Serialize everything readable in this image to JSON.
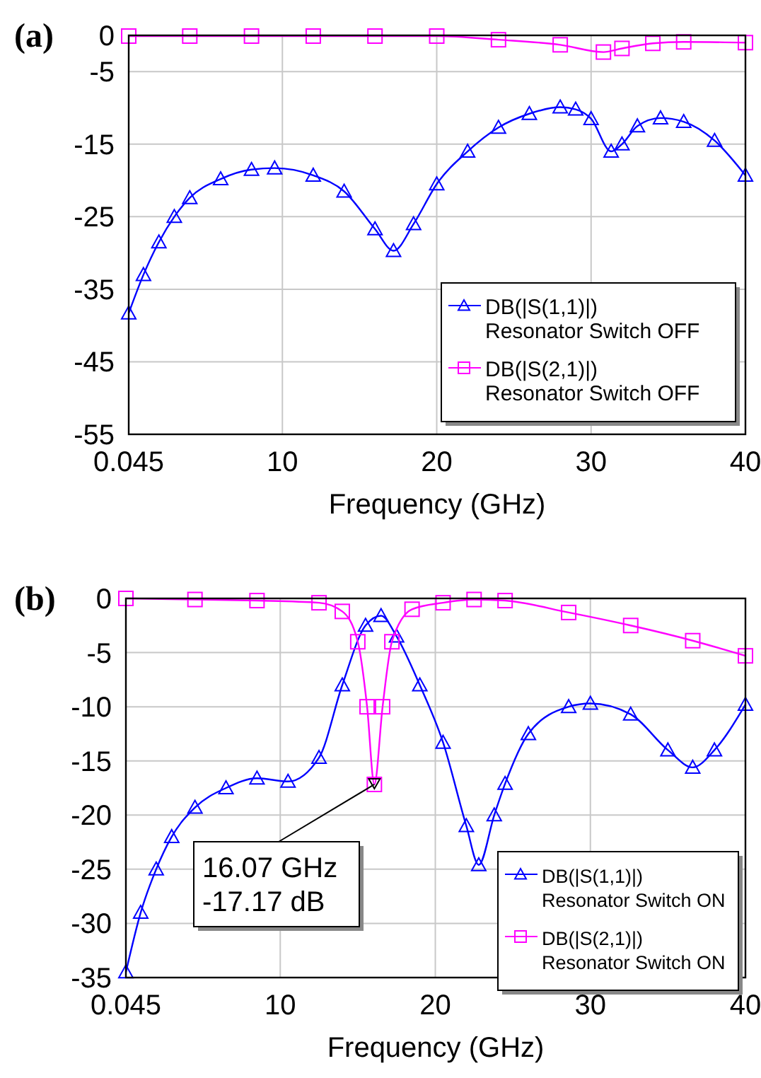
{
  "chart_data": [
    {
      "type": "line",
      "title": "(a)",
      "xlabel": "Frequency (GHz)",
      "xlim": [
        0.045,
        40
      ],
      "xticks": [
        0.045,
        10,
        20,
        30,
        40
      ],
      "ylim": [
        -55,
        0
      ],
      "yticks": [
        0,
        -5,
        -15,
        -25,
        -35,
        -45,
        -55
      ],
      "grid": true,
      "legend": "bottom right",
      "series": [
        {
          "name": "DB(|S(1,1)|)\nResonator Switch OFF",
          "color": "#0000ff",
          "marker": "triangle",
          "x": [
            0.045,
            1,
            2,
            3,
            4,
            6,
            8,
            9.5,
            12,
            14,
            16,
            17.2,
            18.5,
            20,
            22,
            24,
            26,
            28,
            29,
            30,
            31.3,
            32,
            33,
            34.5,
            36,
            38,
            40
          ],
          "values": [
            -38.3,
            -33,
            -28.5,
            -25,
            -22.4,
            -19.8,
            -18.5,
            -18.3,
            -19.3,
            -21.5,
            -26.7,
            -29.7,
            -26,
            -20.5,
            -16,
            -12.7,
            -10.8,
            -9.9,
            -10.2,
            -11.5,
            -16,
            -15,
            -12.5,
            -11.4,
            -11.9,
            -14.5,
            -19.3
          ]
        },
        {
          "name": "DB(|S(2,1)|)\nResonator Switch OFF",
          "color": "#ff00ff",
          "marker": "square",
          "x": [
            0.045,
            4,
            8,
            12,
            16,
            20,
            24,
            28,
            30.8,
            32,
            34,
            36,
            40
          ],
          "values": [
            -0.1,
            -0.1,
            -0.1,
            -0.1,
            -0.1,
            -0.1,
            -0.6,
            -1.3,
            -2.3,
            -1.8,
            -1.1,
            -0.9,
            -1.0
          ]
        }
      ]
    },
    {
      "type": "line",
      "title": "(b)",
      "xlabel": "Frequency (GHz)",
      "xlim": [
        0.045,
        40
      ],
      "xticks": [
        0.045,
        10,
        20,
        30,
        40
      ],
      "ylim": [
        -35,
        0
      ],
      "yticks": [
        0,
        -5,
        -10,
        -15,
        -20,
        -25,
        -30,
        -35
      ],
      "grid": true,
      "legend": "bottom right",
      "annotations": [
        {
          "text": "16.07 GHz\n-17.17 dB",
          "x": 16.07,
          "y": -17.17
        }
      ],
      "series": [
        {
          "name": "DB(|S(1,1)|)\nResonator Switch ON",
          "color": "#0000ff",
          "marker": "triangle",
          "x": [
            0.045,
            1,
            2,
            3,
            4.5,
            6.5,
            8.5,
            10.5,
            12.5,
            14,
            15.5,
            16.5,
            17.5,
            19,
            20.5,
            22,
            22.8,
            23.8,
            24.5,
            26,
            28.6,
            30,
            32.6,
            35,
            36.6,
            38,
            40
          ],
          "values": [
            -34.5,
            -29,
            -25,
            -22,
            -19.3,
            -17.5,
            -16.6,
            -16.9,
            -14.7,
            -8,
            -2.5,
            -1.6,
            -3.5,
            -8,
            -13.3,
            -21,
            -24.6,
            -20,
            -17.1,
            -12.5,
            -10,
            -9.7,
            -10.7,
            -14,
            -15.6,
            -14,
            -9.8
          ]
        },
        {
          "name": "DB(|S(2,1)|)\nResonator Switch ON",
          "color": "#ff00ff",
          "marker": "square",
          "x": [
            0.045,
            4.5,
            8.5,
            12.5,
            14,
            15,
            15.6,
            16.07,
            16.6,
            17.2,
            18.5,
            20.5,
            22.5,
            24.5,
            28.6,
            32.6,
            36.6,
            40
          ],
          "values": [
            0,
            -0.1,
            -0.2,
            -0.4,
            -1.2,
            -4,
            -10,
            -17.17,
            -10,
            -4,
            -1,
            -0.4,
            -0.1,
            -0.2,
            -1.3,
            -2.5,
            -3.9,
            -5.3
          ]
        }
      ]
    }
  ]
}
